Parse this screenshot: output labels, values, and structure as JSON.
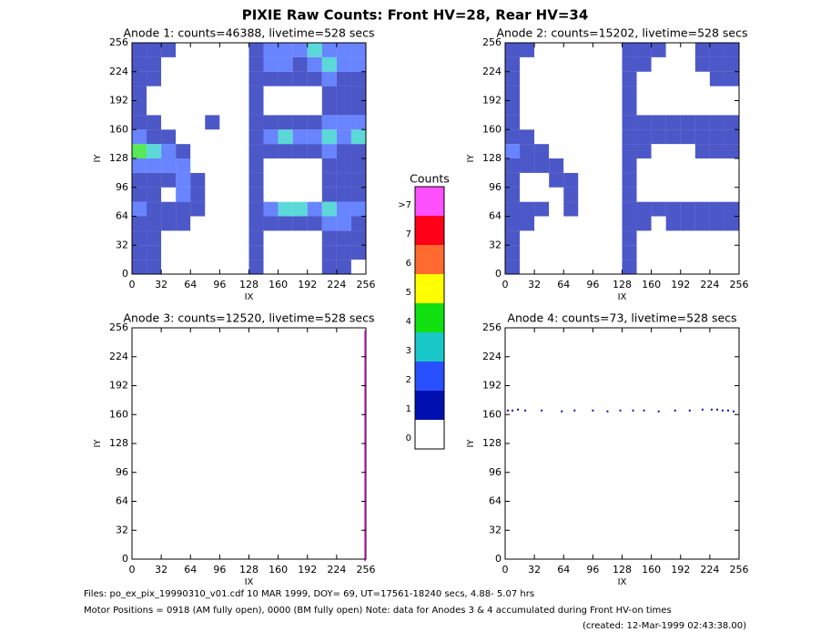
{
  "title": "PIXIE Raw Counts:  Front HV=28, Rear HV=34",
  "footer": [
    "Files: po_ex_pix_19990310_v01.cdf    10 MAR 1999, DOY= 69, UT=17561-18240 secs,  4.88- 5.07 hrs",
    "Motor Positions = 0918 (AM fully open), 0000 (BM fully open)    Note: data for Anodes 3 & 4 accumulated during Front HV-on times",
    "(created: 12-Mar-1999 02:43:38.00)"
  ],
  "chart_data": [
    {
      "type": "heatmap",
      "title": "Anode 1: counts=46388, livetime=528 secs",
      "xlabel": "IX",
      "ylabel": "IY",
      "xlim": [
        0,
        256
      ],
      "ylim": [
        0,
        256
      ],
      "xticks": [
        0,
        32,
        64,
        96,
        128,
        160,
        192,
        224,
        256
      ],
      "yticks": [
        0,
        32,
        64,
        96,
        128,
        160,
        192,
        224,
        256
      ],
      "z": [
        [
          1,
          1,
          0,
          0,
          0,
          0,
          0,
          0,
          1,
          0,
          0,
          0,
          0,
          1,
          1,
          0
        ],
        [
          1,
          1,
          0,
          0,
          0,
          0,
          0,
          0,
          1,
          0,
          0,
          0,
          0,
          1,
          1,
          1
        ],
        [
          1,
          1,
          0,
          0,
          0,
          0,
          0,
          0,
          1,
          0,
          0,
          0,
          0,
          1,
          1,
          1
        ],
        [
          1,
          1,
          1,
          1,
          0,
          0,
          0,
          0,
          1,
          1,
          1,
          1,
          1,
          2,
          2,
          1
        ],
        [
          2,
          1,
          1,
          1,
          1,
          0,
          0,
          0,
          1,
          2,
          3,
          3,
          2,
          3,
          2,
          2
        ],
        [
          1,
          1,
          0,
          2,
          1,
          0,
          0,
          0,
          1,
          0,
          0,
          0,
          0,
          1,
          1,
          1
        ],
        [
          1,
          1,
          1,
          2,
          1,
          0,
          0,
          0,
          1,
          0,
          0,
          0,
          0,
          1,
          1,
          1
        ],
        [
          2,
          2,
          2,
          2,
          0,
          0,
          0,
          0,
          1,
          0,
          0,
          0,
          0,
          1,
          1,
          1
        ],
        [
          4,
          3,
          2,
          1,
          0,
          0,
          0,
          0,
          1,
          1,
          1,
          1,
          1,
          2,
          1,
          1
        ],
        [
          2,
          1,
          1,
          0,
          0,
          0,
          0,
          0,
          1,
          2,
          3,
          2,
          2,
          3,
          2,
          3
        ],
        [
          1,
          1,
          0,
          0,
          0,
          1,
          0,
          0,
          1,
          1,
          1,
          1,
          1,
          2,
          2,
          2
        ],
        [
          1,
          0,
          0,
          0,
          0,
          0,
          0,
          0,
          1,
          0,
          0,
          0,
          0,
          1,
          1,
          1
        ],
        [
          1,
          0,
          0,
          0,
          0,
          0,
          0,
          0,
          1,
          0,
          0,
          0,
          0,
          1,
          1,
          1
        ],
        [
          1,
          1,
          0,
          0,
          0,
          0,
          0,
          0,
          1,
          1,
          1,
          1,
          1,
          2,
          1,
          1
        ],
        [
          1,
          1,
          0,
          0,
          0,
          0,
          0,
          0,
          1,
          2,
          2,
          1,
          2,
          3,
          2,
          2
        ],
        [
          1,
          1,
          1,
          0,
          0,
          0,
          0,
          0,
          1,
          2,
          2,
          2,
          3,
          2,
          2,
          2
        ]
      ]
    },
    {
      "type": "heatmap",
      "title": "Anode 2: counts=15202, livetime=528 secs",
      "xlabel": "IX",
      "ylabel": "IY",
      "xlim": [
        0,
        256
      ],
      "ylim": [
        0,
        256
      ],
      "xticks": [
        0,
        32,
        64,
        96,
        128,
        160,
        192,
        224,
        256
      ],
      "yticks": [
        0,
        32,
        64,
        96,
        128,
        160,
        192,
        224,
        256
      ],
      "z": [
        [
          1,
          0,
          0,
          0,
          0,
          0,
          0,
          0,
          1,
          0,
          0,
          0,
          0,
          0,
          0,
          0
        ],
        [
          1,
          0,
          0,
          0,
          0,
          0,
          0,
          0,
          1,
          0,
          0,
          0,
          0,
          0,
          0,
          0
        ],
        [
          1,
          0,
          0,
          0,
          0,
          0,
          0,
          0,
          1,
          0,
          0,
          0,
          0,
          0,
          0,
          0
        ],
        [
          1,
          1,
          0,
          0,
          0,
          0,
          0,
          0,
          1,
          1,
          0,
          1,
          1,
          1,
          1,
          1
        ],
        [
          1,
          1,
          1,
          0,
          1,
          0,
          0,
          0,
          1,
          1,
          1,
          1,
          1,
          1,
          1,
          1
        ],
        [
          1,
          0,
          0,
          0,
          1,
          0,
          0,
          0,
          1,
          0,
          0,
          0,
          0,
          0,
          0,
          0
        ],
        [
          1,
          0,
          0,
          1,
          1,
          0,
          0,
          0,
          1,
          0,
          0,
          0,
          0,
          0,
          0,
          0
        ],
        [
          1,
          1,
          1,
          1,
          0,
          0,
          0,
          0,
          1,
          0,
          0,
          0,
          0,
          0,
          0,
          0
        ],
        [
          2,
          1,
          1,
          0,
          0,
          0,
          0,
          0,
          1,
          1,
          0,
          0,
          0,
          1,
          1,
          1
        ],
        [
          1,
          1,
          0,
          0,
          0,
          0,
          0,
          0,
          1,
          1,
          1,
          1,
          1,
          1,
          1,
          1
        ],
        [
          1,
          0,
          0,
          0,
          0,
          0,
          0,
          0,
          1,
          1,
          1,
          1,
          1,
          1,
          1,
          1
        ],
        [
          1,
          0,
          0,
          0,
          0,
          0,
          0,
          0,
          1,
          0,
          0,
          0,
          0,
          0,
          0,
          0
        ],
        [
          1,
          0,
          0,
          0,
          0,
          0,
          0,
          0,
          1,
          0,
          0,
          0,
          0,
          0,
          0,
          0
        ],
        [
          1,
          0,
          0,
          0,
          0,
          0,
          0,
          0,
          1,
          0,
          0,
          0,
          0,
          0,
          1,
          1
        ],
        [
          1,
          0,
          0,
          0,
          0,
          0,
          0,
          0,
          1,
          1,
          0,
          0,
          0,
          1,
          1,
          1
        ],
        [
          1,
          1,
          0,
          0,
          0,
          0,
          0,
          0,
          1,
          1,
          1,
          0,
          0,
          1,
          1,
          1
        ]
      ]
    },
    {
      "type": "heatmap",
      "title": "Anode 3: counts=12520, livetime=528 secs",
      "xlabel": "IX",
      "ylabel": "IY",
      "xlim": [
        0,
        256
      ],
      "ylim": [
        0,
        256
      ],
      "xticks": [
        0,
        32,
        64,
        96,
        128,
        160,
        192,
        224,
        256
      ],
      "yticks": [
        0,
        32,
        64,
        96,
        128,
        160,
        192,
        224,
        256
      ],
      "points": {
        "x": [
          255,
          255,
          255,
          255,
          255,
          255,
          255,
          255,
          255,
          255,
          255,
          255,
          255,
          255,
          255,
          255,
          255,
          255,
          255,
          255,
          255,
          255,
          255,
          255,
          255,
          255,
          255,
          255,
          255,
          255,
          255,
          255
        ],
        "y": [
          4,
          12,
          20,
          28,
          36,
          44,
          52,
          60,
          68,
          76,
          84,
          92,
          100,
          108,
          116,
          124,
          132,
          140,
          148,
          156,
          164,
          172,
          180,
          188,
          196,
          204,
          212,
          220,
          228,
          236,
          244,
          252
        ],
        "z": [
          8,
          8,
          8,
          8,
          8,
          8,
          8,
          8,
          8,
          8,
          8,
          8,
          8,
          8,
          8,
          8,
          8,
          8,
          8,
          8,
          8,
          8,
          8,
          8,
          8,
          8,
          8,
          8,
          8,
          8,
          8,
          8
        ]
      }
    },
    {
      "type": "heatmap",
      "title": "Anode 4: counts=73, livetime=528 secs",
      "xlabel": "IX",
      "ylabel": "IY",
      "xlim": [
        0,
        256
      ],
      "ylim": [
        0,
        256
      ],
      "xticks": [
        0,
        32,
        64,
        96,
        128,
        160,
        192,
        224,
        256
      ],
      "yticks": [
        0,
        32,
        64,
        96,
        128,
        160,
        192,
        224,
        256
      ],
      "points": {
        "x": [
          3,
          8,
          14,
          22,
          40,
          62,
          76,
          96,
          112,
          126,
          140,
          152,
          168,
          186,
          202,
          216,
          226,
          232,
          238,
          244,
          250
        ],
        "y": [
          164,
          164,
          165,
          164,
          164,
          163,
          164,
          164,
          163,
          164,
          164,
          164,
          163,
          164,
          164,
          165,
          165,
          165,
          164,
          164,
          163
        ],
        "z": [
          1,
          1,
          1,
          1,
          1,
          1,
          1,
          1,
          1,
          1,
          1,
          1,
          1,
          1,
          1,
          1,
          1,
          1,
          1,
          1,
          1
        ]
      }
    },
    {
      "type": "colorbar",
      "title": "Counts",
      "ticks": [
        0,
        1,
        2,
        3,
        4,
        5,
        6,
        7,
        {
          "value": 8,
          "label": ">7"
        }
      ],
      "colors": [
        "#ffffff",
        "#0010b0",
        "#2850ff",
        "#18c8c8",
        "#10e010",
        "#ffff00",
        "#ff6a30",
        "#ff0018",
        "#ff50ff"
      ]
    }
  ]
}
